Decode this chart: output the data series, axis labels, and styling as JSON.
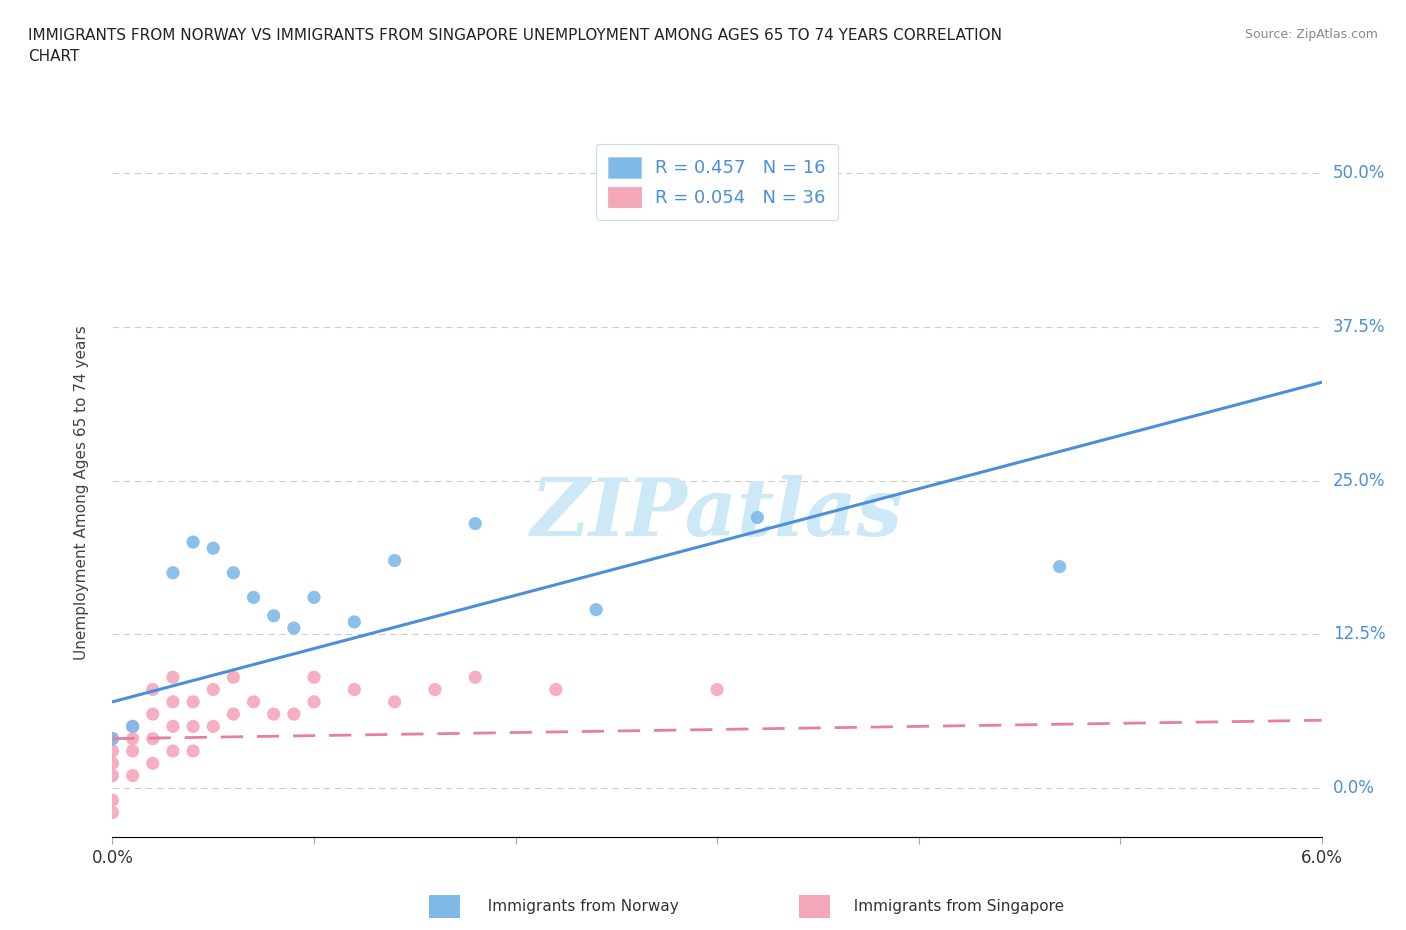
{
  "title": "IMMIGRANTS FROM NORWAY VS IMMIGRANTS FROM SINGAPORE UNEMPLOYMENT AMONG AGES 65 TO 74 YEARS CORRELATION\nCHART",
  "source": "Source: ZipAtlas.com",
  "ylabel": "Unemployment Among Ages 65 to 74 years",
  "xlim": [
    0.0,
    0.06
  ],
  "ylim": [
    -0.04,
    0.52
  ],
  "yticks": [
    0.0,
    0.125,
    0.25,
    0.375,
    0.5
  ],
  "ytick_labels": [
    "0.0%",
    "12.5%",
    "25.0%",
    "37.5%",
    "50.0%"
  ],
  "xticks": [
    0.0,
    0.01,
    0.02,
    0.03,
    0.04,
    0.05,
    0.06
  ],
  "norway_color": "#7eb9e8",
  "singapore_color": "#f4a7b9",
  "norway_line_color": "#4a90d9",
  "singapore_line_color": "#e87fa0",
  "norway_R": 0.457,
  "norway_N": 16,
  "singapore_R": 0.054,
  "singapore_N": 36,
  "watermark": "ZIPatlas",
  "norway_scatter_x": [
    0.0,
    0.001,
    0.003,
    0.004,
    0.005,
    0.006,
    0.007,
    0.008,
    0.009,
    0.01,
    0.012,
    0.014,
    0.018,
    0.024,
    0.032,
    0.047
  ],
  "norway_scatter_y": [
    0.04,
    0.05,
    0.175,
    0.2,
    0.195,
    0.175,
    0.155,
    0.14,
    0.13,
    0.155,
    0.135,
    0.185,
    0.215,
    0.145,
    0.22,
    0.18
  ],
  "singapore_scatter_x": [
    0.0,
    0.0,
    0.0,
    0.0,
    0.0,
    0.0,
    0.001,
    0.001,
    0.001,
    0.001,
    0.002,
    0.002,
    0.002,
    0.002,
    0.003,
    0.003,
    0.003,
    0.003,
    0.004,
    0.004,
    0.004,
    0.005,
    0.005,
    0.006,
    0.006,
    0.007,
    0.008,
    0.009,
    0.01,
    0.01,
    0.012,
    0.014,
    0.016,
    0.018,
    0.022,
    0.03
  ],
  "singapore_scatter_y": [
    0.04,
    0.03,
    0.02,
    0.01,
    -0.01,
    -0.02,
    0.05,
    0.04,
    0.03,
    0.01,
    0.08,
    0.06,
    0.04,
    0.02,
    0.09,
    0.07,
    0.05,
    0.03,
    0.07,
    0.05,
    0.03,
    0.08,
    0.05,
    0.09,
    0.06,
    0.07,
    0.06,
    0.06,
    0.09,
    0.07,
    0.08,
    0.07,
    0.08,
    0.09,
    0.08,
    0.08
  ],
  "norway_trend_x": [
    0.0,
    0.06
  ],
  "norway_trend_y": [
    0.07,
    0.33
  ],
  "singapore_trend_x": [
    0.0,
    0.06
  ],
  "singapore_trend_y": [
    0.04,
    0.055
  ],
  "grid_color": "#c8c8c8",
  "background_color": "#ffffff",
  "tick_label_color": "#4a90d9"
}
